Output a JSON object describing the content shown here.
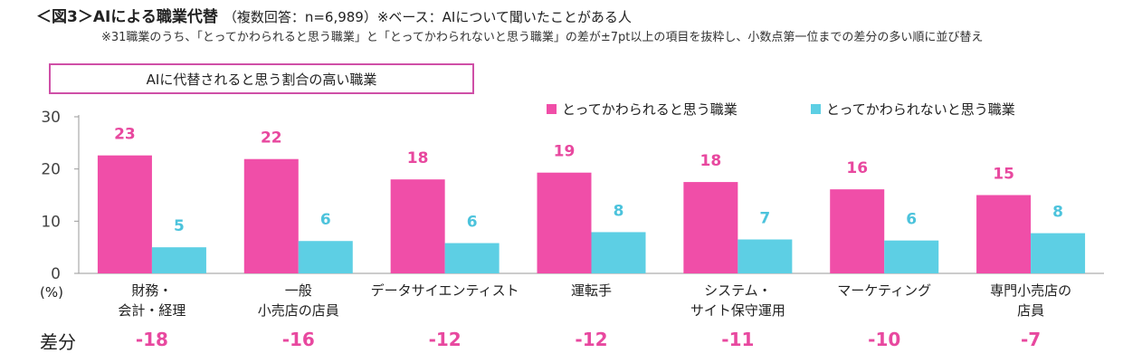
{
  "header": {
    "title_prefix": "＜図3＞",
    "title_main": "AIによる職業代替",
    "title_sub": "（複数回答：n=6,989）※ベース：AIについて聞いたことがある人",
    "note": "※31職業のうち、「とってかわられると思う職業」と「とってかわられないと思う職業」の差が±7pt以上の項目を抜粋し、小数点第一位までの差分の多い順に並び替え",
    "callout": "AIに代替されると思う割合の高い職業"
  },
  "diff_label": "差分",
  "unit_label": "(%)",
  "colors": {
    "pink": "#f04ea8",
    "cyan": "#5dcfe4",
    "pink_text": "#e8489f",
    "cyan_text": "#4cc3dc"
  },
  "chart_data": {
    "type": "bar",
    "title": "AIによる職業代替",
    "ylim": [
      0,
      30
    ],
    "yticks": [
      "0",
      "10",
      "20",
      "30"
    ],
    "ytick_values": [
      0,
      10,
      20,
      30
    ],
    "categories": [
      [
        "財務・",
        "会計・経理"
      ],
      [
        "一般",
        "小売店の店員"
      ],
      [
        "データサイエンティスト"
      ],
      [
        "運転手"
      ],
      [
        "システム・",
        "サイト保守運用"
      ],
      [
        "マーケティング"
      ],
      [
        "専門小売店の",
        "店員"
      ]
    ],
    "series": [
      {
        "name": "とってかわられると思う職業",
        "values": [
          22.6,
          21.9,
          18.0,
          19.3,
          17.5,
          16.1,
          15.0
        ],
        "labels": [
          "23",
          "22",
          "18",
          "19",
          "18",
          "16",
          "15"
        ]
      },
      {
        "name": "とってかわられないと思う職業",
        "values": [
          5.0,
          6.2,
          5.8,
          7.9,
          6.5,
          6.3,
          7.7
        ],
        "labels": [
          "5",
          "6",
          "6",
          "8",
          "7",
          "6",
          "8"
        ]
      }
    ],
    "diffs": [
      "-18",
      "-16",
      "-12",
      "-12",
      "-11",
      "-10",
      "-7"
    ],
    "legend_position": "top-right"
  }
}
